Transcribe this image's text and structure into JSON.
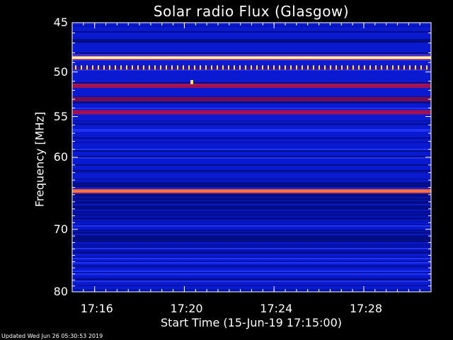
{
  "title": "Solar radio Flux (Glasgow)",
  "footer": "Updated Wed Jun 26 05:30:53 2019",
  "chart_data": {
    "type": "heatmap",
    "title": "Solar radio Flux (Glasgow)",
    "xlabel": "Start Time (15-Jun-19 17:15:00)",
    "ylabel": "Frequency [MHz]",
    "x_unit": "time",
    "x_range": [
      "17:15:00",
      "17:31:00"
    ],
    "xticks": [
      "17:16",
      "17:20",
      "17:24",
      "17:28"
    ],
    "ylim": [
      45,
      80
    ],
    "y_scale": "log",
    "y_inverted": true,
    "yticks": [
      45,
      50,
      55,
      60,
      70,
      80
    ],
    "colormap": "blue-red-yellow-white",
    "bright_bands_mhz": [
      {
        "freq": 48.5,
        "level": "white"
      },
      {
        "freq": 49.6,
        "level": "orange-yellow (pulsed)"
      },
      {
        "freq": 51.5,
        "level": "red"
      },
      {
        "freq": 53.0,
        "level": "dark red"
      },
      {
        "freq": 54.5,
        "level": "red"
      },
      {
        "freq": 64.5,
        "level": "orange"
      }
    ],
    "spots": [
      {
        "time": "17:20:20",
        "freq": 51.1,
        "level": "yellow"
      }
    ],
    "colors": {
      "background": "#000000",
      "base": "#0a1ad0",
      "deep": "#000a6a",
      "red": "#c0103a",
      "orange": "#ff5a28",
      "yellow": "#ffe060",
      "white": "#ffffff"
    }
  }
}
